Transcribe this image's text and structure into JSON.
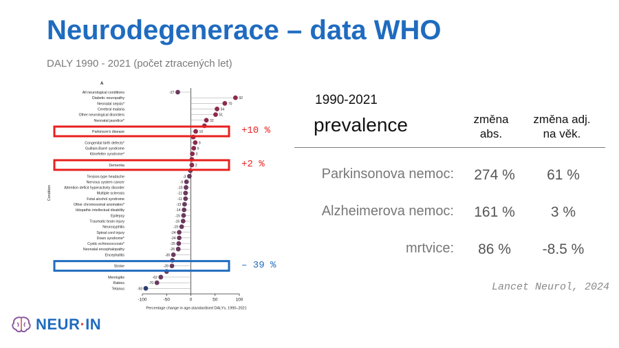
{
  "slide": {
    "title": "Neurodegenerace – data WHO",
    "subtitle": "DALY  1990 - 2021 (počet ztracených let)"
  },
  "chart_data": {
    "type": "scatter",
    "panel_label": "A",
    "ylabel": "Condition",
    "xlabel": "Percentage change in age-standardised DALYs, 1990–2021",
    "xlim": [
      -100,
      100
    ],
    "xticks": [
      -100,
      -50,
      0,
      50,
      100
    ],
    "grid": false,
    "categories": [
      "All neurological conditions",
      "Diabetic neuropathy",
      "Neonatal sepsis*",
      "Cerebral malaria",
      "Other neurological disorders",
      "Neonatal jaundice*",
      "",
      "Parkinson's disease",
      "",
      "Congenital birth defects*",
      "Guillain-Barré syndrome",
      "Klinefelter syndrome*",
      "",
      "Dementia",
      "",
      "Tension-type headache",
      "Nervous system cancer",
      "Attention deficit hyperactivity disorder",
      "Multiple sclerosis",
      "Fetal alcohol syndrome",
      "Other chromosomal anomalies*",
      "Idiopathic intellectual disability",
      "Epilepsy",
      "Traumatic brain injury",
      "Neurosyphilis",
      "Spinal cord injury",
      "Down syndrome*",
      "Cystic echinococcosis*",
      "Neonatal encephalopathy",
      "Encephalitis",
      "",
      "Stroke",
      "",
      "Meningitis",
      "Rabies",
      "Tetanus"
    ],
    "values": [
      -27,
      92,
      70,
      54,
      51,
      32,
      28,
      10,
      5,
      9,
      6,
      3,
      2,
      2,
      -1,
      -3,
      -9,
      -10,
      -11,
      -11,
      -13,
      -14,
      -15,
      -16,
      -19,
      -24,
      -24,
      -25,
      -26,
      -36,
      -38,
      -39,
      -50,
      -62,
      -70,
      -93
    ],
    "data_labels": [
      "-27",
      "92",
      "70",
      "54",
      "51",
      "32",
      "",
      "10",
      "",
      "9",
      "6",
      "3",
      "",
      "2",
      "",
      "-3",
      "-9",
      "-10",
      "-11",
      "-11",
      "-13",
      "-14",
      "-15",
      "-16",
      "-19",
      "-24",
      "-24",
      "-25",
      "-26",
      "-36",
      "",
      "-39",
      "",
      "-62",
      "-70",
      "-93"
    ],
    "highlights": [
      {
        "category": "Parkinson's disease",
        "label": "+10 %",
        "color": "#e8201f"
      },
      {
        "category": "Dementia",
        "label": "+2 %",
        "color": "#e8201f"
      },
      {
        "category": "Stroke",
        "label": "– 39 %",
        "color": "#1f6bbf"
      }
    ],
    "colors": {
      "positive": "#8b2b4c",
      "negative": "#6a3a5e",
      "lowest": "#2b3d73"
    }
  },
  "table": {
    "period": "1990-2021",
    "metric": "prevalence",
    "col1_line1": "změna",
    "col1_line2": "abs.",
    "col2_line1": "změna adj.",
    "col2_line2": "na věk.",
    "rows": [
      {
        "label": "Parkinsonova nemoc:",
        "abs": "274 %",
        "adj": "61 %"
      },
      {
        "label": "Alzheimerova nemoc:",
        "abs": "161 %",
        "adj": "3 %"
      },
      {
        "label": "mrtvice:",
        "abs": "86 %",
        "adj": "-8.5 %"
      }
    ]
  },
  "citation": "Lancet Neurol, 2024",
  "logo": {
    "text_a": "NEUR",
    "text_dot": "·",
    "text_b": "IN"
  }
}
